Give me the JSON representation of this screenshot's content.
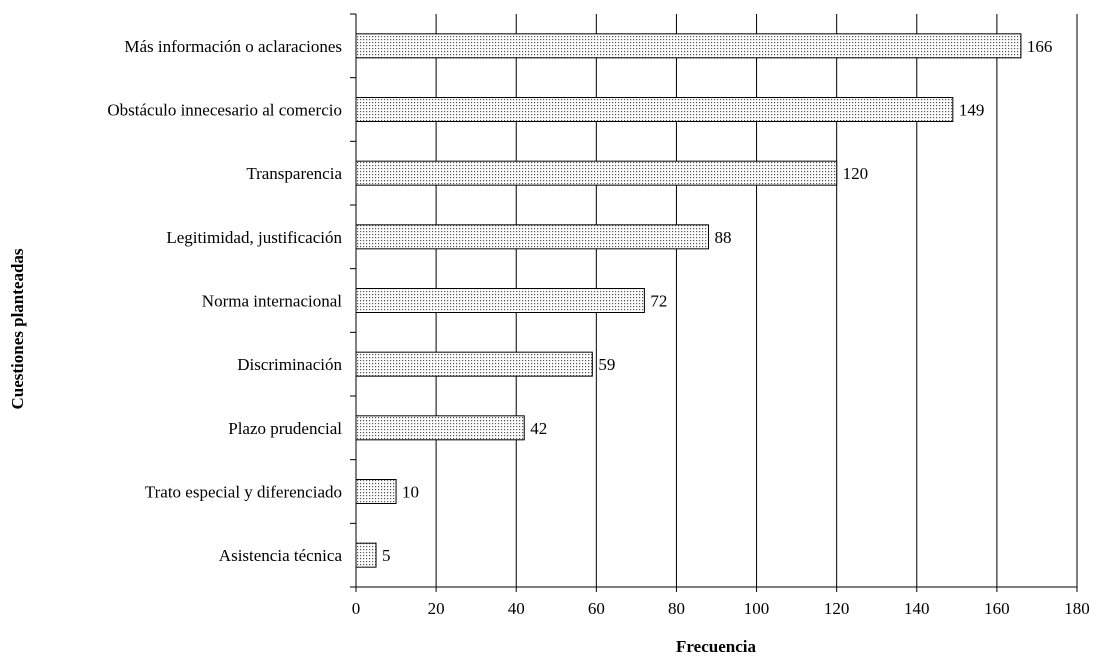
{
  "chart_data": {
    "type": "bar",
    "orientation": "horizontal",
    "categories": [
      "Más información o aclaraciones",
      "Obstáculo innecesario al comercio",
      "Transparencia",
      "Legitimidad, justificación",
      "Norma internacional",
      "Discriminación",
      "Plazo prudencial",
      "Trato especial y diferenciado",
      "Asistencia técnica"
    ],
    "values": [
      166,
      149,
      120,
      88,
      72,
      59,
      42,
      10,
      5
    ],
    "value_labels": [
      "166",
      "149",
      "120",
      "88",
      "72",
      "59",
      "42",
      "10",
      "5"
    ],
    "xlabel": "Frecuencia",
    "ylabel": "Cuestiones planteadas",
    "xlim": [
      0,
      180
    ],
    "xticks": [
      "0",
      "20",
      "40",
      "60",
      "80",
      "100",
      "120",
      "140",
      "160",
      "180"
    ],
    "grid": "vertical",
    "bar_fill": "dotted-grey",
    "colors": {
      "bar_stroke": "#000000",
      "bar_dots": "#555555",
      "grid": "#000000"
    }
  }
}
